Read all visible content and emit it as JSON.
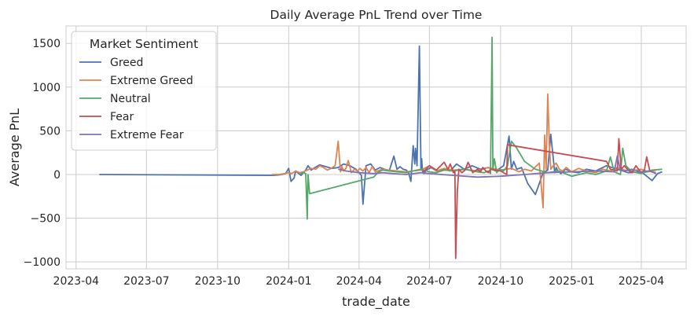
{
  "chart_data": {
    "type": "line",
    "title": "Daily Average PnL Trend over Time",
    "xlabel": "trade_date",
    "ylabel": "Average PnL",
    "x_type": "date",
    "xlim": [
      "2023-03-19",
      "2025-05-29"
    ],
    "ylim": [
      -1080,
      1700
    ],
    "x_ticks": [
      "2023-04-01",
      "2023-07-01",
      "2023-10-01",
      "2024-01-01",
      "2024-04-01",
      "2024-07-01",
      "2024-10-01",
      "2025-01-01",
      "2025-04-01"
    ],
    "x_tick_labels": [
      "2023-04",
      "2023-07",
      "2023-10",
      "2024-01",
      "2024-04",
      "2024-07",
      "2024-10",
      "2025-01",
      "2025-04"
    ],
    "y_ticks": [
      -1000,
      -500,
      0,
      500,
      1000,
      1500
    ],
    "y_tick_labels": [
      "−1000",
      "−500",
      "0",
      "500",
      "1000",
      "1500"
    ],
    "grid": true,
    "legend_title": "Market Sentiment",
    "legend_position": "top-left",
    "series": [
      {
        "name": "Greed",
        "color": "#4c72b0",
        "x": [
          "2023-05-01",
          "2023-12-12",
          "2023-12-20",
          "2023-12-26",
          "2023-12-28",
          "2024-01-01",
          "2024-01-04",
          "2024-01-08",
          "2024-01-10",
          "2024-01-14",
          "2024-01-17",
          "2024-01-20",
          "2024-01-23",
          "2024-01-26",
          "2024-01-30",
          "2024-02-04",
          "2024-02-10",
          "2024-02-18",
          "2024-02-26",
          "2024-03-05",
          "2024-03-12",
          "2024-03-20",
          "2024-03-28",
          "2024-04-04",
          "2024-04-06",
          "2024-04-10",
          "2024-04-16",
          "2024-04-22",
          "2024-04-28",
          "2024-05-04",
          "2024-05-10",
          "2024-05-16",
          "2024-05-20",
          "2024-05-24",
          "2024-05-28",
          "2024-06-01",
          "2024-06-04",
          "2024-06-07",
          "2024-06-10",
          "2024-06-12",
          "2024-06-13",
          "2024-06-15",
          "2024-06-18",
          "2024-06-20",
          "2024-06-21",
          "2024-06-22",
          "2024-06-24",
          "2024-06-27",
          "2024-07-03",
          "2024-07-12",
          "2024-07-20",
          "2024-07-28",
          "2024-08-05",
          "2024-08-15",
          "2024-08-25",
          "2024-09-05",
          "2024-09-15",
          "2024-09-25",
          "2024-10-05",
          "2024-10-12",
          "2024-10-15",
          "2024-10-18",
          "2024-10-22",
          "2024-10-28",
          "2024-11-05",
          "2024-11-15",
          "2024-11-25",
          "2024-12-01",
          "2024-12-05",
          "2024-12-10",
          "2024-12-12",
          "2024-12-14",
          "2024-12-18",
          "2024-12-24",
          "2025-01-01",
          "2025-01-10",
          "2025-01-20",
          "2025-02-01",
          "2025-02-15",
          "2025-03-01",
          "2025-03-15",
          "2025-04-01",
          "2025-04-15",
          "2025-04-22",
          "2025-04-28"
        ],
        "values": [
          0,
          -10,
          -5,
          5,
          10,
          70,
          -80,
          -40,
          40,
          10,
          -10,
          20,
          50,
          100,
          50,
          80,
          110,
          90,
          70,
          80,
          120,
          100,
          60,
          -10,
          -340,
          100,
          120,
          50,
          80,
          60,
          40,
          210,
          60,
          90,
          60,
          50,
          20,
          -80,
          330,
          120,
          300,
          100,
          1470,
          60,
          180,
          40,
          10,
          50,
          80,
          30,
          60,
          40,
          120,
          60,
          100,
          60,
          80,
          40,
          100,
          440,
          60,
          150,
          60,
          80,
          -100,
          -230,
          20,
          50,
          460,
          20,
          80,
          40,
          10,
          60,
          30,
          20,
          60,
          40,
          100,
          60,
          20,
          30,
          -70,
          10,
          30
        ]
      },
      {
        "name": "Extreme Greed",
        "color": "#dd8452",
        "x": [
          "2023-12-10",
          "2023-12-20",
          "2024-01-01",
          "2024-01-05",
          "2024-01-10",
          "2024-01-15",
          "2024-01-20",
          "2024-01-25",
          "2024-01-30",
          "2024-02-05",
          "2024-02-10",
          "2024-02-15",
          "2024-02-20",
          "2024-02-25",
          "2024-03-01",
          "2024-03-05",
          "2024-03-08",
          "2024-03-10",
          "2024-03-12",
          "2024-03-15",
          "2024-03-18",
          "2024-03-22",
          "2024-03-26",
          "2024-03-30",
          "2024-04-02",
          "2024-04-06",
          "2024-04-10",
          "2024-04-14",
          "2024-04-18",
          "2024-04-22",
          "2024-05-01",
          "2024-05-10",
          "2024-05-20",
          "2024-06-01",
          "2024-06-10",
          "2024-06-20",
          "2024-07-01",
          "2024-07-10",
          "2024-07-20",
          "2024-08-01",
          "2024-08-15",
          "2024-09-01",
          "2024-09-15",
          "2024-10-01",
          "2024-10-15",
          "2024-10-25",
          "2024-11-01",
          "2024-11-10",
          "2024-11-20",
          "2024-11-25",
          "2024-11-27",
          "2024-11-29",
          "2024-12-01",
          "2024-12-03",
          "2024-12-05",
          "2024-12-08",
          "2024-12-12",
          "2024-12-16",
          "2024-12-20",
          "2024-12-25",
          "2025-01-01",
          "2025-01-10",
          "2025-01-20",
          "2025-02-01",
          "2025-02-10",
          "2025-02-20",
          "2025-03-01",
          "2025-03-10",
          "2025-03-20",
          "2025-04-01",
          "2025-04-10",
          "2025-04-20"
        ],
        "values": [
          0,
          0,
          20,
          10,
          40,
          20,
          30,
          50,
          70,
          60,
          100,
          80,
          50,
          70,
          100,
          380,
          30,
          90,
          40,
          70,
          160,
          20,
          60,
          40,
          70,
          40,
          80,
          20,
          90,
          30,
          60,
          50,
          40,
          30,
          40,
          50,
          100,
          40,
          70,
          50,
          60,
          40,
          80,
          50,
          70,
          30,
          60,
          40,
          130,
          -380,
          450,
          60,
          920,
          350,
          60,
          100,
          130,
          60,
          40,
          80,
          30,
          70,
          40,
          20,
          60,
          40,
          80,
          50,
          40,
          60,
          30,
          50
        ]
      },
      {
        "name": "Neutral",
        "color": "#55a868",
        "x": [
          "2024-01-16",
          "2024-01-20",
          "2024-01-23",
          "2024-01-25",
          "2024-01-26",
          "2024-01-28",
          "2024-04-20",
          "2024-04-25",
          "2024-05-01",
          "2024-05-10",
          "2024-05-20",
          "2024-06-01",
          "2024-06-10",
          "2024-06-20",
          "2024-07-01",
          "2024-07-10",
          "2024-07-20",
          "2024-08-01",
          "2024-08-15",
          "2024-09-01",
          "2024-09-10",
          "2024-09-15",
          "2024-09-18",
          "2024-09-20",
          "2024-09-21",
          "2024-09-23",
          "2024-09-26",
          "2024-09-30",
          "2024-10-05",
          "2024-10-10",
          "2024-10-15",
          "2024-10-22",
          "2024-11-01",
          "2024-11-15",
          "2024-12-01",
          "2024-12-15",
          "2025-01-01",
          "2025-01-20",
          "2025-02-01",
          "2025-02-15",
          "2025-02-20",
          "2025-02-25",
          "2025-03-05",
          "2025-03-08",
          "2025-03-12",
          "2025-03-20",
          "2025-04-01",
          "2025-04-15",
          "2025-04-28"
        ],
        "values": [
          10,
          20,
          10,
          -510,
          0,
          -220,
          -30,
          20,
          50,
          40,
          30,
          20,
          40,
          60,
          30,
          20,
          50,
          40,
          60,
          30,
          20,
          40,
          10,
          1570,
          50,
          180,
          20,
          60,
          40,
          100,
          380,
          300,
          150,
          60,
          20,
          40,
          -20,
          20,
          0,
          40,
          200,
          30,
          0,
          300,
          100,
          30,
          10,
          50,
          60
        ]
      },
      {
        "name": "Fear",
        "color": "#c44e52",
        "x": [
          "2024-06-22",
          "2024-07-01",
          "2024-07-10",
          "2024-07-20",
          "2024-07-25",
          "2024-07-28",
          "2024-08-01",
          "2024-08-03",
          "2024-08-04",
          "2024-08-06",
          "2024-08-08",
          "2024-08-12",
          "2024-08-16",
          "2024-08-20",
          "2024-08-26",
          "2024-09-01",
          "2024-09-05",
          "2024-09-08",
          "2024-09-12",
          "2024-09-15",
          "2024-09-18",
          "2024-10-01",
          "2024-10-09",
          "2024-10-10",
          "2025-02-15",
          "2025-02-20",
          "2025-03-01",
          "2025-03-03",
          "2025-03-06",
          "2025-03-10",
          "2025-03-15",
          "2025-03-20",
          "2025-03-25",
          "2025-04-01",
          "2025-04-05",
          "2025-04-08",
          "2025-04-12",
          "2025-04-20"
        ],
        "values": [
          20,
          100,
          50,
          140,
          60,
          120,
          20,
          40,
          -960,
          -200,
          60,
          20,
          50,
          140,
          20,
          60,
          30,
          80,
          40,
          20,
          60,
          40,
          0,
          340,
          150,
          60,
          40,
          410,
          60,
          100,
          50,
          20,
          100,
          20,
          50,
          200,
          40,
          10
        ]
      },
      {
        "name": "Extreme Fear",
        "color": "#8172b3",
        "x": [
          "2024-03-05",
          "2024-03-15",
          "2024-04-01",
          "2024-04-20",
          "2024-05-01",
          "2024-05-15",
          "2024-06-01",
          "2024-06-20",
          "2024-07-01",
          "2024-08-01",
          "2024-09-01",
          "2024-10-01",
          "2024-11-01",
          "2024-12-01",
          "2025-01-01",
          "2025-02-01",
          "2025-02-25",
          "2025-03-01",
          "2025-03-05",
          "2025-03-10",
          "2025-03-20",
          "2025-04-01",
          "2025-04-10",
          "2025-04-20"
        ],
        "values": [
          60,
          40,
          20,
          10,
          20,
          10,
          0,
          20,
          10,
          -10,
          -30,
          -20,
          0,
          20,
          30,
          40,
          30,
          210,
          50,
          40,
          60,
          30,
          40,
          20
        ]
      }
    ]
  }
}
